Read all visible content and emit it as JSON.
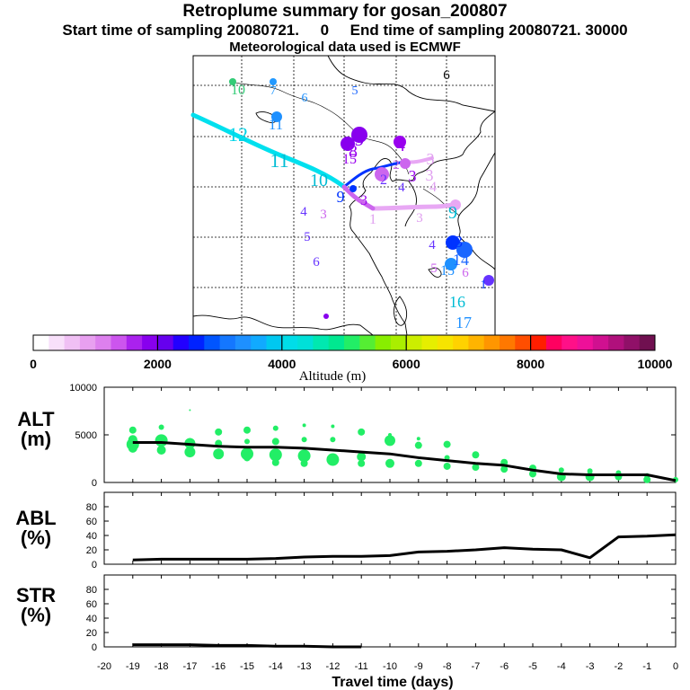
{
  "header": {
    "title": "Retroplume summary for gosan_200807",
    "subtitle": "Start time of sampling 20080721.     0     End time of sampling 20080721. 30000",
    "met": "Meteorological data used is ECMWF"
  },
  "colorbar": {
    "ticks": [
      "0",
      "2000",
      "4000",
      "6000",
      "8000",
      "10000"
    ],
    "label": "Altitude  (m)",
    "range": [
      0,
      10000
    ]
  },
  "map": {
    "labels": [
      {
        "t": "10",
        "x": 50,
        "y": 43,
        "c": "#33cc77",
        "s": 16
      },
      {
        "t": "7",
        "x": 89,
        "y": 43,
        "c": "#2299ff",
        "s": 14
      },
      {
        "t": "6",
        "x": 124,
        "y": 51,
        "c": "#1e90ff",
        "s": 14
      },
      {
        "t": "5",
        "x": 180,
        "y": 43,
        "c": "#1a66ff",
        "s": 14
      },
      {
        "t": "6",
        "x": 282,
        "y": 26,
        "c": "#000000",
        "s": 15
      },
      {
        "t": "11",
        "x": 92,
        "y": 82,
        "c": "#1e90ff",
        "s": 17
      },
      {
        "t": "12",
        "x": 50,
        "y": 95,
        "c": "#00d4e8",
        "s": 22
      },
      {
        "t": "11",
        "x": 96,
        "y": 124,
        "c": "#00bcd4",
        "s": 22
      },
      {
        "t": "10",
        "x": 140,
        "y": 145,
        "c": "#00bcd4",
        "s": 20
      },
      {
        "t": "9",
        "x": 185,
        "y": 100,
        "c": "#8800ee",
        "s": 22
      },
      {
        "t": "8",
        "x": 178,
        "y": 113,
        "c": "#9900ee",
        "s": 20
      },
      {
        "t": "15",
        "x": 174,
        "y": 120,
        "c": "#9900ee",
        "s": 16
      },
      {
        "t": "4",
        "x": 231,
        "y": 106,
        "c": "#9900ee",
        "s": 20
      },
      {
        "t": "2",
        "x": 226,
        "y": 126,
        "c": "#cc66ee",
        "s": 15
      },
      {
        "t": "3",
        "x": 264,
        "y": 121,
        "c": "#e0a0f0",
        "s": 18
      },
      {
        "t": "3",
        "x": 263,
        "y": 139,
        "c": "#e0a0f0",
        "s": 18
      },
      {
        "t": "3",
        "x": 244,
        "y": 140,
        "c": "#9900ee",
        "s": 18
      },
      {
        "t": "4",
        "x": 267,
        "y": 151,
        "c": "#e0a0f0",
        "s": 16
      },
      {
        "t": "4",
        "x": 232,
        "y": 151,
        "c": "#6633ff",
        "s": 15
      },
      {
        "t": "2",
        "x": 212,
        "y": 143,
        "c": "#6633ff",
        "s": 16
      },
      {
        "t": "9",
        "x": 164,
        "y": 163,
        "c": "#0033ff",
        "s": 18
      },
      {
        "t": "3",
        "x": 190,
        "y": 166,
        "c": "#9900ee",
        "s": 16
      },
      {
        "t": "3",
        "x": 145,
        "y": 181,
        "c": "#cc66ee",
        "s": 15
      },
      {
        "t": "4",
        "x": 123,
        "y": 178,
        "c": "#6633ff",
        "s": 15
      },
      {
        "t": "1",
        "x": 200,
        "y": 187,
        "c": "#e0a0f0",
        "s": 16
      },
      {
        "t": "3",
        "x": 252,
        "y": 185,
        "c": "#e0a0f0",
        "s": 15
      },
      {
        "t": "9",
        "x": 289,
        "y": 181,
        "c": "#00bcd4",
        "s": 20
      },
      {
        "t": "5",
        "x": 127,
        "y": 206,
        "c": "#6633ff",
        "s": 15
      },
      {
        "t": "4",
        "x": 266,
        "y": 215,
        "c": "#6633ff",
        "s": 15
      },
      {
        "t": "13",
        "x": 291,
        "y": 213,
        "c": "#0033ff",
        "s": 18
      },
      {
        "t": "14",
        "x": 298,
        "y": 233,
        "c": "#1a66ff",
        "s": 18
      },
      {
        "t": "6",
        "x": 137,
        "y": 234,
        "c": "#6633ff",
        "s": 15
      },
      {
        "t": "5",
        "x": 268,
        "y": 241,
        "c": "#cc66ee",
        "s": 15
      },
      {
        "t": "15",
        "x": 283,
        "y": 244,
        "c": "#1e90ff",
        "s": 16
      },
      {
        "t": "6",
        "x": 303,
        "y": 246,
        "c": "#cc66ee",
        "s": 15
      },
      {
        "t": "16",
        "x": 294,
        "y": 280,
        "c": "#00bcd4",
        "s": 18
      },
      {
        "t": "17",
        "x": 301,
        "y": 303,
        "c": "#1e90ff",
        "s": 18
      },
      {
        "t": "1",
        "x": 323,
        "y": 259,
        "c": "#0033ff",
        "s": 14
      }
    ]
  },
  "panels": {
    "alt_label": "ALT\n(m)",
    "abl_label": "ABL\n(%)",
    "str_label": "STR\n(%)",
    "xlabel": "Travel time (days)",
    "alt_yticks": [
      "10000",
      "5000",
      "0"
    ],
    "pct_yticks": [
      "80",
      "60",
      "40",
      "20",
      "0"
    ]
  },
  "chart_data": [
    {
      "type": "line",
      "name": "ALT",
      "ylabel": "ALT (m)",
      "xlabel": "Travel time (days)",
      "xlim": [
        -20,
        0
      ],
      "ylim": [
        0,
        10000
      ],
      "x": [
        -19,
        -18,
        -17,
        -16,
        -15,
        -14,
        -13,
        -12,
        -11,
        -10,
        -9,
        -8,
        -7,
        -6,
        -5,
        -4,
        -3,
        -2,
        -1,
        0
      ],
      "y": [
        4200,
        4200,
        4000,
        3800,
        3700,
        3700,
        3600,
        3400,
        3200,
        3000,
        2600,
        2300,
        2000,
        1800,
        1300,
        900,
        800,
        800,
        800,
        200
      ],
      "scatter": {
        "color": "#22ee66",
        "points": [
          [
            -19,
            5500,
            4
          ],
          [
            -19,
            4500,
            5
          ],
          [
            -19,
            4000,
            7
          ],
          [
            -19,
            3600,
            5
          ],
          [
            -18,
            5800,
            3
          ],
          [
            -18,
            4400,
            7
          ],
          [
            -18,
            3400,
            5
          ],
          [
            -17,
            7600,
            1
          ],
          [
            -17,
            4100,
            6
          ],
          [
            -17,
            3200,
            6
          ],
          [
            -16,
            5300,
            4
          ],
          [
            -16,
            4100,
            4
          ],
          [
            -16,
            3000,
            6
          ],
          [
            -15,
            5500,
            4
          ],
          [
            -15,
            4300,
            3
          ],
          [
            -15,
            3000,
            7
          ],
          [
            -15,
            2600,
            4
          ],
          [
            -14,
            5700,
            3
          ],
          [
            -14,
            4300,
            4
          ],
          [
            -14,
            2900,
            7
          ],
          [
            -14,
            2100,
            4
          ],
          [
            -13,
            6000,
            2
          ],
          [
            -13,
            4500,
            3
          ],
          [
            -13,
            2800,
            7
          ],
          [
            -13,
            2000,
            4
          ],
          [
            -12,
            5900,
            2
          ],
          [
            -12,
            4500,
            3
          ],
          [
            -12,
            2400,
            7
          ],
          [
            -11,
            5300,
            4
          ],
          [
            -11,
            2700,
            5
          ],
          [
            -11,
            2000,
            4
          ],
          [
            -10,
            5000,
            2
          ],
          [
            -10,
            4400,
            6
          ],
          [
            -10,
            2000,
            5
          ],
          [
            -9,
            4600,
            2
          ],
          [
            -9,
            3900,
            4
          ],
          [
            -9,
            2000,
            4
          ],
          [
            -8,
            4000,
            4
          ],
          [
            -8,
            2600,
            3
          ],
          [
            -8,
            1700,
            4
          ],
          [
            -7,
            2900,
            4
          ],
          [
            -7,
            1600,
            4
          ],
          [
            -6,
            2100,
            4
          ],
          [
            -6,
            1400,
            4
          ],
          [
            -5,
            1500,
            4
          ],
          [
            -5,
            900,
            4
          ],
          [
            -4,
            1300,
            3
          ],
          [
            -4,
            600,
            5
          ],
          [
            -3,
            1200,
            3
          ],
          [
            -3,
            600,
            5
          ],
          [
            -2,
            1000,
            3
          ],
          [
            -2,
            600,
            4
          ],
          [
            -1,
            700,
            3
          ],
          [
            -1,
            300,
            4
          ],
          [
            0,
            300,
            3
          ]
        ]
      }
    },
    {
      "type": "line",
      "name": "ABL",
      "ylabel": "ABL (%)",
      "xlim": [
        -20,
        0
      ],
      "ylim": [
        0,
        100
      ],
      "x": [
        -19,
        -18,
        -17,
        -16,
        -15,
        -14,
        -13,
        -12,
        -11,
        -10,
        -9,
        -8,
        -7,
        -6,
        -5,
        -4,
        -3,
        -2,
        -1,
        0
      ],
      "y": [
        6,
        7,
        7,
        7,
        7,
        8,
        10,
        11,
        11,
        12,
        17,
        18,
        20,
        23,
        21,
        20,
        9,
        38,
        39,
        41
      ]
    },
    {
      "type": "line",
      "name": "STR",
      "ylabel": "STR (%)",
      "xlim": [
        -20,
        0
      ],
      "ylim": [
        0,
        100
      ],
      "x": [
        -19,
        -18,
        -17,
        -16,
        -15,
        -14,
        -13,
        -12,
        -11
      ],
      "y": [
        3,
        3,
        3,
        2,
        2,
        1,
        1,
        0,
        0
      ]
    }
  ],
  "x_ticks": [
    "-20",
    "-19",
    "-18",
    "-17",
    "-16",
    "-15",
    "-14",
    "-13",
    "-12",
    "-11",
    "-10",
    "-9",
    "-8",
    "-7",
    "-6",
    "-5",
    "-4",
    "-3",
    "-2",
    "-1",
    "0"
  ]
}
